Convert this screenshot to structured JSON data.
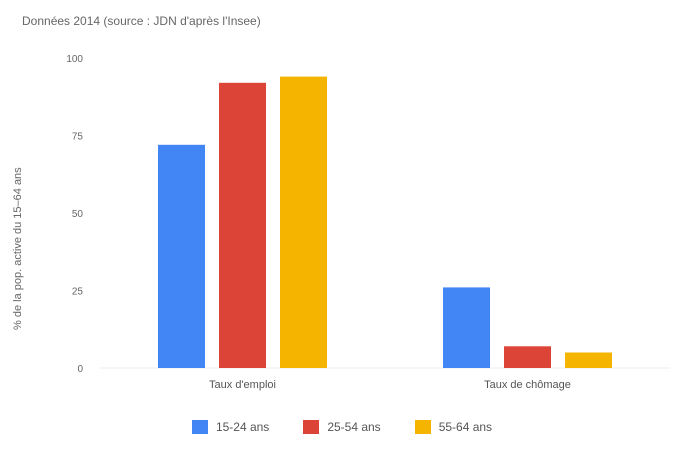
{
  "chart_data": {
    "type": "bar",
    "title": "Données 2014 (source : JDN d'après l'Insee)",
    "xlabel": "",
    "ylabel": "% de la pop. active du 15–64 ans",
    "ylim": [
      0,
      100
    ],
    "yticks": [
      0,
      25,
      50,
      75,
      100
    ],
    "grid": false,
    "legend_position": "bottom",
    "categories": [
      "Taux d'emploi",
      "Taux de chômage"
    ],
    "series": [
      {
        "name": "15-24 ans",
        "color": "#4285f4",
        "values": [
          72,
          26
        ]
      },
      {
        "name": "25-54 ans",
        "color": "#db4437",
        "values": [
          92,
          7
        ]
      },
      {
        "name": "55-64 ans",
        "color": "#f4b400",
        "values": [
          94,
          5
        ]
      }
    ]
  }
}
